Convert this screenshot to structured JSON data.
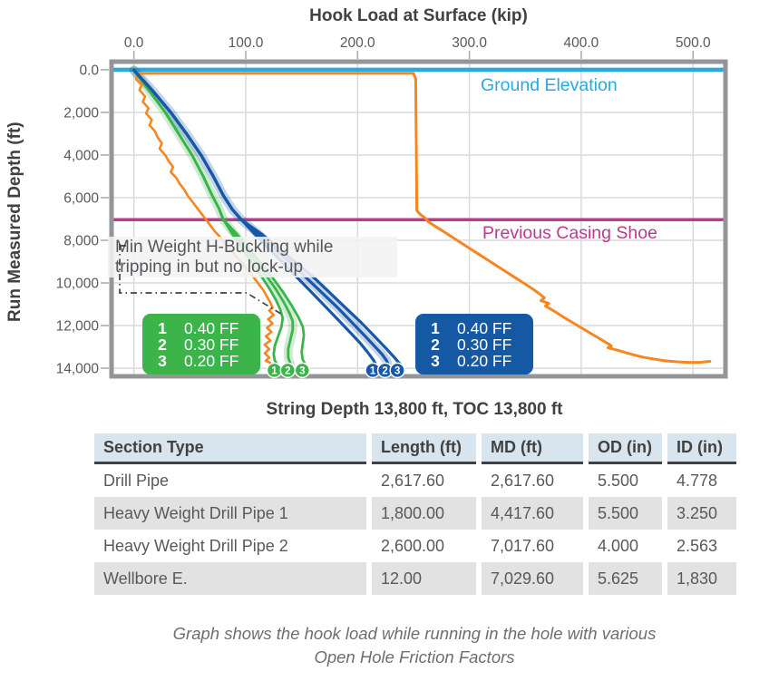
{
  "chart_data": {
    "type": "line",
    "title": "Hook Load at Surface (kip)",
    "xlabel": "Hook Load at Surface (kip)",
    "ylabel": "Run Measured Depth (ft)",
    "x_axis": {
      "min": -20,
      "max": 529,
      "unit": "kip",
      "ticks": [
        0,
        100,
        200,
        300,
        400,
        500
      ],
      "tick_labels": [
        "0.0",
        "100.0",
        "200.0",
        "300.0",
        "400.0",
        "500.0"
      ]
    },
    "y_axis": {
      "min": -380,
      "max": 14380,
      "unit": "ft",
      "direction": "down",
      "ticks": [
        0,
        2000,
        4000,
        6000,
        8000,
        10000,
        12000,
        14000
      ],
      "tick_labels": [
        "0.0",
        "2,000",
        "4,000",
        "6,000",
        "8,000",
        "10,000",
        "12,000",
        "14,000"
      ]
    },
    "grid": true,
    "reference_lines": [
      {
        "label": "Ground Elevation",
        "depth_ft": 0,
        "color": "#29A9E0",
        "width": 4.5
      },
      {
        "label": "Previous Casing Shoe",
        "depth_ft": 7030,
        "color": "#BC3A8C",
        "width": 3.5
      }
    ],
    "annotation": {
      "line1": "Min Weight H-Buckling while",
      "line2": "tripping in but no lock-up"
    },
    "legend_green": {
      "color": "#3BB54A",
      "entries": [
        {
          "n": "1",
          "label": "0.40 FF"
        },
        {
          "n": "2",
          "label": "0.30 FF"
        },
        {
          "n": "3",
          "label": "0.20 FF"
        }
      ]
    },
    "legend_blue": {
      "color": "#1558A4",
      "entries": [
        {
          "n": "1",
          "label": "0.40 FF"
        },
        {
          "n": "2",
          "label": "0.30 FF"
        },
        {
          "n": "3",
          "label": "0.20 FF"
        }
      ]
    },
    "series": [
      {
        "name": "hook-load-upper-envelope",
        "color": "#F6861F",
        "width": 3,
        "points": [
          [
            0,
            60
          ],
          [
            4,
            170
          ],
          [
            250,
            170
          ],
          [
            252,
            420
          ],
          [
            253,
            6600
          ],
          [
            256,
            6780
          ],
          [
            261,
            6980
          ],
          [
            263,
            7120
          ],
          [
            269,
            7330
          ],
          [
            276,
            7560
          ],
          [
            284,
            7830
          ],
          [
            292,
            8100
          ],
          [
            300,
            8370
          ],
          [
            308,
            8640
          ],
          [
            316,
            8910
          ],
          [
            324,
            9180
          ],
          [
            332,
            9450
          ],
          [
            340,
            9720
          ],
          [
            348,
            9990
          ],
          [
            356,
            10260
          ],
          [
            363,
            10520
          ],
          [
            367,
            10700
          ],
          [
            364,
            10830
          ],
          [
            371,
            10960
          ],
          [
            368,
            11080
          ],
          [
            376,
            11330
          ],
          [
            385,
            11630
          ],
          [
            393,
            11880
          ],
          [
            401,
            12130
          ],
          [
            409,
            12380
          ],
          [
            417,
            12630
          ],
          [
            425,
            12880
          ],
          [
            427,
            12960
          ],
          [
            424,
            13040
          ],
          [
            432,
            13150
          ],
          [
            440,
            13270
          ],
          [
            448,
            13390
          ],
          [
            456,
            13490
          ],
          [
            465,
            13570
          ],
          [
            475,
            13650
          ],
          [
            486,
            13700
          ],
          [
            497,
            13730
          ],
          [
            507,
            13720
          ],
          [
            515,
            13680
          ]
        ]
      },
      {
        "name": "min-weight-trip-in",
        "color": "#F6861F",
        "width": 2.6,
        "points": [
          [
            0,
            20
          ],
          [
            3,
            250
          ],
          [
            2,
            450
          ],
          [
            7,
            700
          ],
          [
            5,
            950
          ],
          [
            10,
            1250
          ],
          [
            8,
            1500
          ],
          [
            13,
            1800
          ],
          [
            11,
            2050
          ],
          [
            16,
            2350
          ],
          [
            14,
            2600
          ],
          [
            19,
            2900
          ],
          [
            21,
            3150
          ],
          [
            25,
            3450
          ],
          [
            23,
            3700
          ],
          [
            28,
            4000
          ],
          [
            31,
            4280
          ],
          [
            35,
            4560
          ],
          [
            33,
            4800
          ],
          [
            38,
            5080
          ],
          [
            41,
            5350
          ],
          [
            45,
            5620
          ],
          [
            48,
            5900
          ],
          [
            52,
            6170
          ],
          [
            56,
            6450
          ],
          [
            60,
            6720
          ],
          [
            64,
            7000
          ],
          [
            68,
            7280
          ],
          [
            72,
            7560
          ],
          [
            77,
            7840
          ],
          [
            81,
            8120
          ],
          [
            86,
            8400
          ],
          [
            90,
            8680
          ],
          [
            95,
            8960
          ],
          [
            99,
            9240
          ],
          [
            104,
            9520
          ],
          [
            108,
            9800
          ],
          [
            112,
            10080
          ],
          [
            116,
            10360
          ],
          [
            119,
            10640
          ],
          [
            122,
            10920
          ],
          [
            124,
            11150
          ],
          [
            121,
            11300
          ],
          [
            125,
            11500
          ],
          [
            120,
            11700
          ],
          [
            124,
            11900
          ],
          [
            119,
            12100
          ],
          [
            123,
            12300
          ],
          [
            118,
            12500
          ],
          [
            122,
            12700
          ],
          [
            117,
            12900
          ],
          [
            121,
            13100
          ],
          [
            117,
            13300
          ],
          [
            121,
            13500
          ],
          [
            118,
            13650
          ],
          [
            122,
            13750
          ]
        ]
      },
      {
        "name": "green-ff-0.40",
        "color": "#3BB54A",
        "width": 2.8,
        "marker": "1",
        "points": [
          [
            0,
            20
          ],
          [
            14,
            1000
          ],
          [
            28,
            2000
          ],
          [
            40,
            3000
          ],
          [
            52,
            4000
          ],
          [
            62,
            5000
          ],
          [
            70,
            5900
          ],
          [
            76,
            6500
          ],
          [
            80,
            7030
          ],
          [
            88,
            7700
          ],
          [
            97,
            8400
          ],
          [
            106,
            9100
          ],
          [
            114,
            9700
          ],
          [
            121,
            10250
          ],
          [
            127,
            10800
          ],
          [
            131,
            11250
          ],
          [
            133,
            11650
          ],
          [
            132,
            12050
          ],
          [
            129,
            12500
          ],
          [
            126,
            12950
          ],
          [
            125,
            13350
          ],
          [
            126,
            13650
          ],
          [
            128,
            13800
          ]
        ]
      },
      {
        "name": "green-ff-0.30",
        "color": "#3BB54A",
        "width": 2.8,
        "marker": "2",
        "glow": true,
        "points": [
          [
            0,
            20
          ],
          [
            14,
            1000
          ],
          [
            28,
            2000
          ],
          [
            40,
            3000
          ],
          [
            52,
            4000
          ],
          [
            62,
            5000
          ],
          [
            70,
            5900
          ],
          [
            76,
            6500
          ],
          [
            80,
            7030
          ],
          [
            90,
            7700
          ],
          [
            100,
            8400
          ],
          [
            110,
            9100
          ],
          [
            119,
            9700
          ],
          [
            127,
            10300
          ],
          [
            134,
            10900
          ],
          [
            139,
            11400
          ],
          [
            142,
            11800
          ],
          [
            142,
            12200
          ],
          [
            140,
            12650
          ],
          [
            138,
            13100
          ],
          [
            138,
            13500
          ],
          [
            140,
            13800
          ]
        ]
      },
      {
        "name": "green-ff-0.20",
        "color": "#3BB54A",
        "width": 2.8,
        "marker": "3",
        "points": [
          [
            0,
            20
          ],
          [
            14,
            1000
          ],
          [
            28,
            2000
          ],
          [
            40,
            3000
          ],
          [
            52,
            4000
          ],
          [
            62,
            5000
          ],
          [
            70,
            5900
          ],
          [
            76,
            6500
          ],
          [
            80,
            7030
          ],
          [
            92,
            7700
          ],
          [
            103,
            8400
          ],
          [
            114,
            9100
          ],
          [
            124,
            9750
          ],
          [
            133,
            10400
          ],
          [
            141,
            11050
          ],
          [
            147,
            11600
          ],
          [
            151,
            12050
          ],
          [
            152,
            12450
          ],
          [
            151,
            12850
          ],
          [
            150,
            13250
          ],
          [
            151,
            13600
          ],
          [
            153,
            13800
          ]
        ]
      },
      {
        "name": "blue-ff-0.40",
        "color": "#1759A8",
        "width": 3.2,
        "marker": "1",
        "points": [
          [
            0,
            20
          ],
          [
            17,
            1000
          ],
          [
            33,
            2000
          ],
          [
            47,
            3000
          ],
          [
            60,
            4000
          ],
          [
            71,
            5000
          ],
          [
            80,
            5900
          ],
          [
            88,
            6550
          ],
          [
            96,
            7030
          ],
          [
            108,
            7700
          ],
          [
            121,
            8400
          ],
          [
            134,
            9100
          ],
          [
            147,
            9800
          ],
          [
            160,
            10500
          ],
          [
            172,
            11150
          ],
          [
            183,
            11750
          ],
          [
            193,
            12300
          ],
          [
            202,
            12800
          ],
          [
            209,
            13250
          ],
          [
            214,
            13600
          ],
          [
            216,
            13800
          ]
        ]
      },
      {
        "name": "blue-ff-0.30",
        "color": "#1759A8",
        "width": 3.2,
        "marker": "2",
        "glow": true,
        "points": [
          [
            0,
            20
          ],
          [
            17,
            1000
          ],
          [
            33,
            2000
          ],
          [
            47,
            3000
          ],
          [
            60,
            4000
          ],
          [
            71,
            5000
          ],
          [
            80,
            5900
          ],
          [
            88,
            6550
          ],
          [
            96,
            7030
          ],
          [
            111,
            7700
          ],
          [
            126,
            8400
          ],
          [
            141,
            9100
          ],
          [
            155,
            9800
          ],
          [
            169,
            10500
          ],
          [
            182,
            11150
          ],
          [
            194,
            11800
          ],
          [
            205,
            12400
          ],
          [
            214,
            12900
          ],
          [
            222,
            13350
          ],
          [
            226,
            13650
          ],
          [
            227,
            13800
          ]
        ]
      },
      {
        "name": "blue-ff-0.20",
        "color": "#1759A8",
        "width": 3.2,
        "marker": "3",
        "points": [
          [
            0,
            20
          ],
          [
            17,
            1000
          ],
          [
            33,
            2000
          ],
          [
            47,
            3000
          ],
          [
            60,
            4000
          ],
          [
            71,
            5000
          ],
          [
            80,
            5900
          ],
          [
            88,
            6550
          ],
          [
            96,
            7030
          ],
          [
            114,
            7700
          ],
          [
            130,
            8400
          ],
          [
            146,
            9100
          ],
          [
            162,
            9800
          ],
          [
            177,
            10550
          ],
          [
            191,
            11250
          ],
          [
            204,
            11900
          ],
          [
            216,
            12550
          ],
          [
            226,
            13100
          ],
          [
            233,
            13500
          ],
          [
            237,
            13750
          ],
          [
            238,
            13800
          ]
        ]
      }
    ]
  },
  "table": {
    "title": "String Depth 13,800 ft, TOC 13,800 ft",
    "columns": [
      "Section Type",
      "Length (ft)",
      "MD (ft)",
      "OD (in)",
      "ID (in)"
    ],
    "rows": [
      [
        "Drill Pipe",
        "2,617.60",
        "2,617.60",
        "5.500",
        "4.778"
      ],
      [
        "Heavy Weight Drill Pipe 1",
        "1,800.00",
        "4,417.60",
        "5.500",
        "3.250"
      ],
      [
        "Heavy Weight Drill Pipe 2",
        "2,600.00",
        "7,017.60",
        "4.000",
        "2.563"
      ],
      [
        "Wellbore E.",
        "12.00",
        "7,029.60",
        "5.625",
        "1,830"
      ]
    ]
  },
  "caption": {
    "line1": "Graph shows the hook load while running in the hole with various",
    "line2": "Open Hole Friction Factors"
  },
  "colors": {
    "plot_border": "#939598",
    "gridline": "#D9DADC",
    "tick_text": "#58595B",
    "heading_text": "#414042",
    "table_header_bg": "#D9E5EE",
    "table_alt_row_bg": "#E2E2E2"
  }
}
